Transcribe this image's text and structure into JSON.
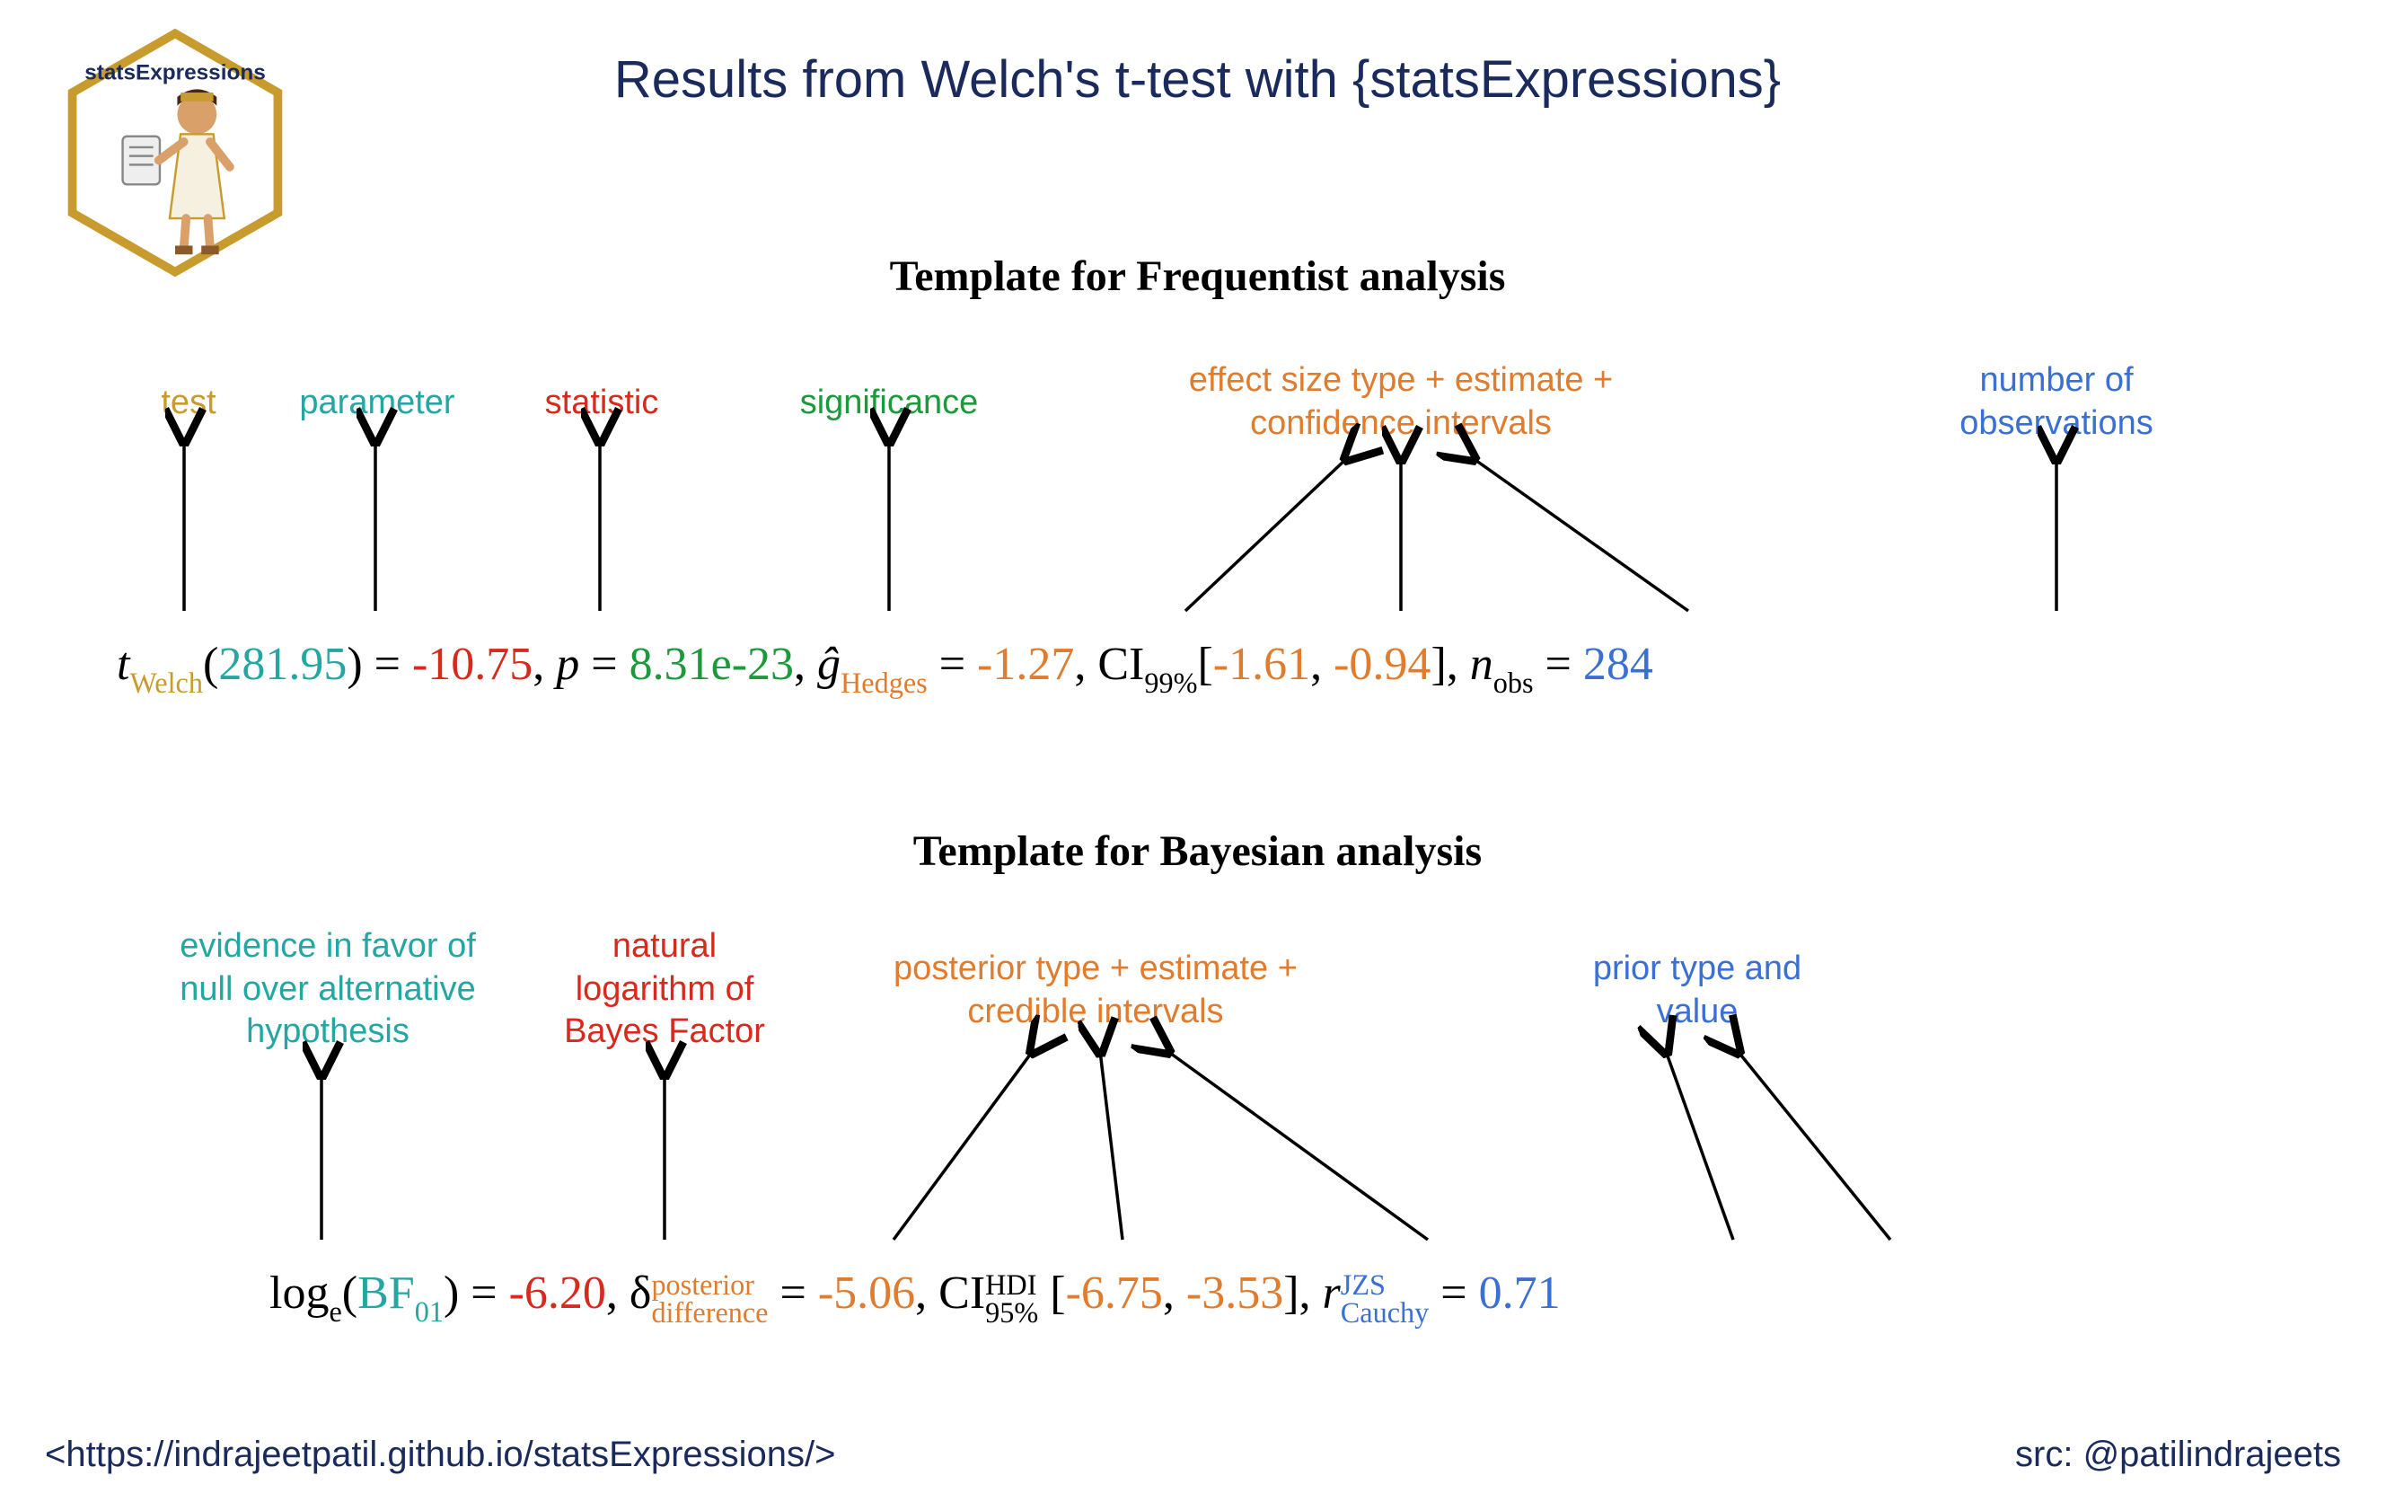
{
  "title": {
    "text": "Results from Welch's t-test with {statsExpressions}",
    "color": "#1a2a5c",
    "fontsize_pt": 44
  },
  "logo": {
    "label_text": "statsExpressions",
    "hex_stroke": "#c89b2e",
    "hex_fill": "#ffffff",
    "label_color": "#1a2a5c"
  },
  "colors": {
    "gold": "#c89b2e",
    "teal": "#24a7a3",
    "red": "#d62a1c",
    "green": "#1a9a3a",
    "orange": "#e07c2e",
    "blue": "#3a6fd4",
    "navy": "#1a2a5c",
    "black": "#000000"
  },
  "frequentist": {
    "heading": "Template for Frequentist analysis",
    "annotations": {
      "test": {
        "text": "test",
        "color": "#c89b2e"
      },
      "parameter": {
        "text": "parameter",
        "color": "#24a7a3"
      },
      "statistic": {
        "text": "statistic",
        "color": "#d62a1c"
      },
      "significance": {
        "text": "significance",
        "color": "#1a9a3a"
      },
      "effect": {
        "text": "effect size type + estimate +\nconfidence intervals",
        "color": "#e07c2e"
      },
      "nobs": {
        "text": "number of\nobservations",
        "color": "#3a6fd4"
      }
    },
    "expr": {
      "t_symbol": "t",
      "t_sub": "Welch",
      "df": "281.95",
      "stat": "-10.75",
      "p_symbol": "p",
      "p_val": "8.31e-23",
      "g_symbol": "ĝ",
      "g_sub": "Hedges",
      "g_val": "-1.27",
      "ci_label": "CI",
      "ci_sub": "99%",
      "ci_lo": "-1.61",
      "ci_hi": "-0.94",
      "n_symbol": "n",
      "n_sub": "obs",
      "n_val": "284"
    }
  },
  "bayesian": {
    "heading": "Template for Bayesian analysis",
    "annotations": {
      "evidence": {
        "text": "evidence in favor of\nnull over alternative\nhypothesis",
        "color": "#24a7a3"
      },
      "lnbf": {
        "text": "natural\nlogarithm of\nBayes Factor",
        "color": "#d62a1c"
      },
      "posterior": {
        "text": "posterior type + estimate +\ncredible intervals",
        "color": "#e07c2e"
      },
      "prior": {
        "text": "prior type and\nvalue",
        "color": "#3a6fd4"
      }
    },
    "expr": {
      "log_symbol": "log",
      "log_sub": "e",
      "bf_symbol": "BF",
      "bf_sub": "01",
      "bf_val": "-6.20",
      "delta_symbol": "δ",
      "delta_sup": "posterior",
      "delta_sub": "difference",
      "delta_val": "-5.06",
      "ci_label": "CI",
      "ci_sup": "HDI",
      "ci_sub": "95%",
      "ci_lo": "-6.75",
      "ci_hi": "-3.53",
      "r_symbol": "r",
      "r_sup": "JZS",
      "r_sub": "Cauchy",
      "r_val": "0.71"
    }
  },
  "footer": {
    "left": "<https://indrajeetpatil.github.io/statsExpressions/>",
    "right": "src: @patilindrajeets",
    "color": "#1a2a5c"
  },
  "arrows": {
    "stroke": "#000000",
    "width": 3.5,
    "head_size": 14
  }
}
